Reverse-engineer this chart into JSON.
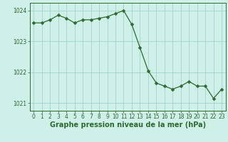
{
  "hours": [
    0,
    1,
    2,
    3,
    4,
    5,
    6,
    7,
    8,
    9,
    10,
    11,
    12,
    13,
    14,
    15,
    16,
    17,
    18,
    19,
    20,
    21,
    22,
    23
  ],
  "pressure": [
    1023.6,
    1023.6,
    1023.7,
    1023.85,
    1023.75,
    1023.6,
    1023.7,
    1023.7,
    1023.75,
    1023.8,
    1023.9,
    1024.0,
    1023.55,
    1022.8,
    1022.05,
    1021.65,
    1021.55,
    1021.45,
    1021.55,
    1021.7,
    1021.55,
    1021.55,
    1021.15,
    1021.45
  ],
  "line_color": "#2d6a2d",
  "marker": "D",
  "marker_size": 2.5,
  "bg_color": "#cef0e8",
  "grid_color": "#96d0c4",
  "title": "Graphe pression niveau de la mer (hPa)",
  "ylim": [
    1020.75,
    1024.25
  ],
  "yticks": [
    1021,
    1022,
    1023,
    1024
  ],
  "xticks": [
    0,
    1,
    2,
    3,
    4,
    5,
    6,
    7,
    8,
    9,
    10,
    11,
    12,
    13,
    14,
    15,
    16,
    17,
    18,
    19,
    20,
    21,
    22,
    23
  ],
  "tick_fontsize": 5.5,
  "title_fontsize": 7,
  "title_color": "#2d6a2d",
  "axis_color": "#2d6a2d"
}
